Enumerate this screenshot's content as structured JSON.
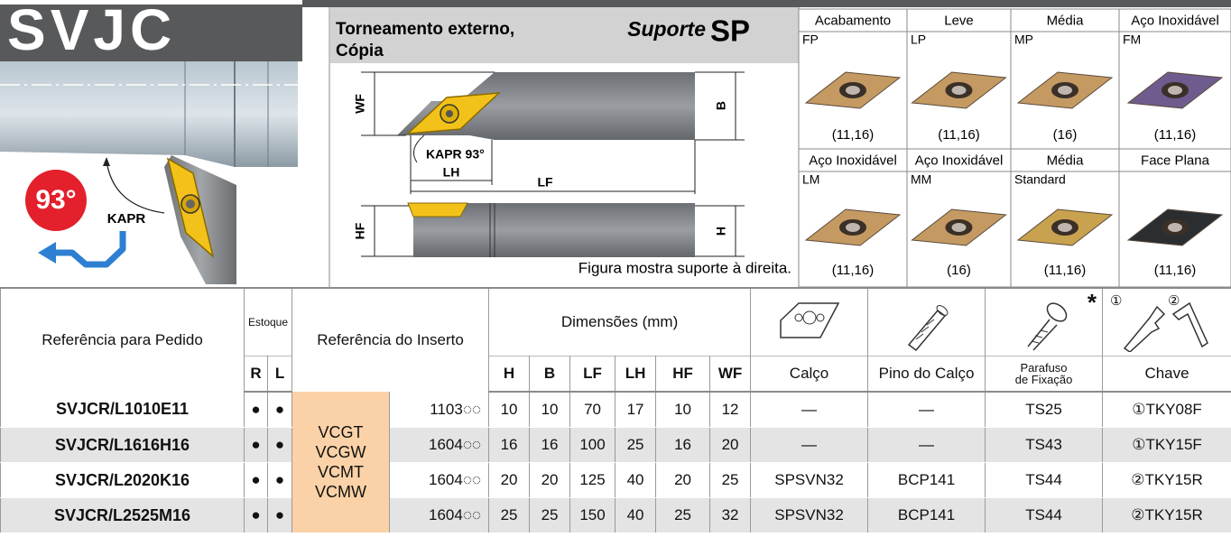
{
  "header": {
    "code": "SVJC",
    "angle": "93°",
    "angle_label": "KAPR",
    "title": [
      "Torneamento externo,",
      "Cópia"
    ],
    "holder_label": "Suporte",
    "holder_code": "SP"
  },
  "diagram": {
    "wf": "WF",
    "b": "B",
    "kapr": "KAPR 93°",
    "lh": "LH",
    "lf": "LF",
    "hf": "HF",
    "h": "H",
    "caption": "Figura mostra suporte à direita."
  },
  "inserts": [
    {
      "application": "Acabamento",
      "chipbreaker": "FP",
      "sizes": "(11,16)",
      "color": "#c49a62"
    },
    {
      "application": "Leve",
      "chipbreaker": "LP",
      "sizes": "(11,16)",
      "color": "#c49a62"
    },
    {
      "application": "Média",
      "chipbreaker": "MP",
      "sizes": "(16)",
      "color": "#c49a62"
    },
    {
      "application": "Aço Inoxidável",
      "chipbreaker": "FM",
      "sizes": "(11,16)",
      "color": "#6f5c8e"
    },
    {
      "application": "Aço Inoxidável",
      "chipbreaker": "LM",
      "sizes": "(11,16)",
      "color": "#c49a62"
    },
    {
      "application": "Aço Inoxidável",
      "chipbreaker": "MM",
      "sizes": "(16)",
      "color": "#c49a62"
    },
    {
      "application": "Média",
      "chipbreaker": "Standard",
      "sizes": "(11,16)",
      "color": "#c8a24e"
    },
    {
      "application": "Face Plana",
      "sizes": "(11,16)",
      "color": "#2b2e31"
    }
  ],
  "table": {
    "headers": {
      "order_ref": "Referência para Pedido",
      "stock": "Estoque",
      "stock_r": "R",
      "stock_l": "L",
      "insert_ref": "Referência do Inserto",
      "dimensions": "Dimensões (mm)",
      "dims": [
        "H",
        "B",
        "LF",
        "LH",
        "HF",
        "WF"
      ],
      "shim": "Calço",
      "shim_pin": "Pino do Calço",
      "screw": [
        "Parafuso",
        "de Fixação"
      ],
      "screw_note": "*",
      "key": "Chave",
      "key_marks": [
        "①",
        "②"
      ]
    },
    "insert_types": [
      "VCGT",
      "VCGW",
      "VCMT",
      "VCMW"
    ],
    "rows": [
      {
        "ref": "SVJCR/L1010E11",
        "r": "●",
        "l": "●",
        "insert": "1103◌◌",
        "dims": [
          10,
          10,
          70,
          17,
          10,
          12
        ],
        "shim": "—",
        "shim_pin": "—",
        "screw": "TS25",
        "key": "①TKY08F"
      },
      {
        "ref": "SVJCR/L1616H16",
        "r": "●",
        "l": "●",
        "insert": "1604◌◌",
        "dims": [
          16,
          16,
          100,
          25,
          16,
          20
        ],
        "shim": "—",
        "shim_pin": "—",
        "screw": "TS43",
        "key": "①TKY15F"
      },
      {
        "ref": "SVJCR/L2020K16",
        "r": "●",
        "l": "●",
        "insert": "1604◌◌",
        "dims": [
          20,
          20,
          125,
          40,
          20,
          25
        ],
        "shim": "SPSVN32",
        "shim_pin": "BCP141",
        "screw": "TS44",
        "key": "②TKY15R"
      },
      {
        "ref": "SVJCR/L2525M16",
        "r": "●",
        "l": "●",
        "insert": "1604◌◌",
        "dims": [
          25,
          25,
          150,
          40,
          25,
          32
        ],
        "shim": "SPSVN32",
        "shim_pin": "BCP141",
        "screw": "TS44",
        "key": "②TKY15R"
      }
    ]
  }
}
